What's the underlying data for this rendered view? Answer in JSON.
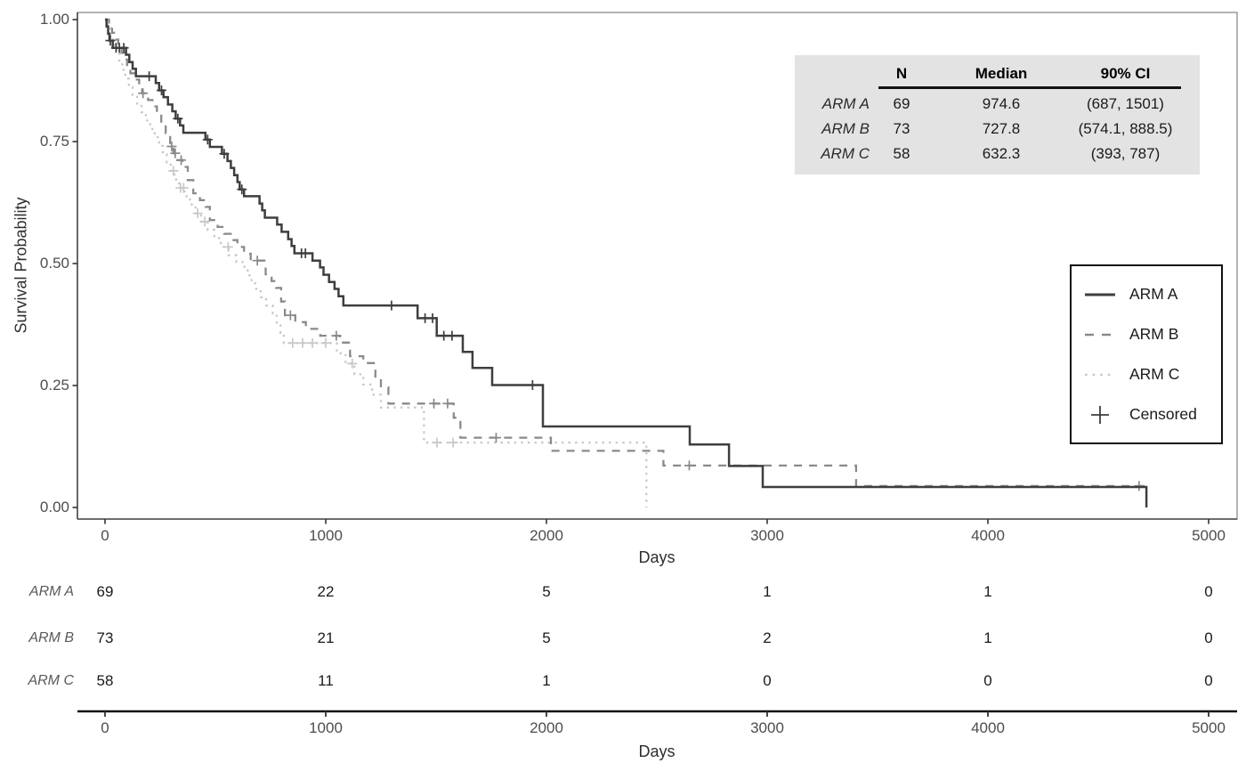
{
  "axes": {
    "x_title": "Days",
    "y_title": "Survival Probability"
  },
  "chart_data": {
    "type": "line",
    "subtype": "kaplan-meier-step",
    "title": "",
    "xlabel": "Days",
    "ylabel": "Survival Probability",
    "xlim": [
      0,
      5000
    ],
    "ylim": [
      0.0,
      1.0
    ],
    "grid": false,
    "legend_position": "right-inside-box",
    "x_ticks": [
      0,
      1000,
      2000,
      3000,
      4000,
      5000
    ],
    "y_ticks": [
      1.0,
      0.75,
      0.5,
      0.25,
      0.0
    ],
    "y_tick_labels": [
      "1.00",
      "0.75",
      "0.50",
      "0.25",
      "0.00"
    ],
    "series": [
      {
        "name": "ARM A",
        "color": "#3e3e3e",
        "line_style": "solid",
        "end_time": 4718,
        "steps": [
          [
            7,
            0.986
          ],
          [
            14,
            0.971
          ],
          [
            20,
            0.957
          ],
          [
            35,
            0.942
          ],
          [
            95,
            0.928
          ],
          [
            110,
            0.913
          ],
          [
            125,
            0.899
          ],
          [
            140,
            0.884
          ],
          [
            230,
            0.87
          ],
          [
            245,
            0.855
          ],
          [
            265,
            0.841
          ],
          [
            285,
            0.826
          ],
          [
            305,
            0.812
          ],
          [
            320,
            0.797
          ],
          [
            340,
            0.783
          ],
          [
            355,
            0.768
          ],
          [
            455,
            0.754
          ],
          [
            475,
            0.739
          ],
          [
            530,
            0.725
          ],
          [
            555,
            0.71
          ],
          [
            570,
            0.696
          ],
          [
            585,
            0.681
          ],
          [
            600,
            0.667
          ],
          [
            610,
            0.652
          ],
          [
            630,
            0.638
          ],
          [
            700,
            0.623
          ],
          [
            712,
            0.609
          ],
          [
            724,
            0.594
          ],
          [
            780,
            0.58
          ],
          [
            800,
            0.565
          ],
          [
            830,
            0.55
          ],
          [
            845,
            0.536
          ],
          [
            858,
            0.521
          ],
          [
            940,
            0.506
          ],
          [
            974,
            0.492
          ],
          [
            990,
            0.477
          ],
          [
            1015,
            0.462
          ],
          [
            1040,
            0.448
          ],
          [
            1058,
            0.433
          ],
          [
            1080,
            0.414
          ],
          [
            1416,
            0.388
          ],
          [
            1503,
            0.352
          ],
          [
            1621,
            0.319
          ],
          [
            1665,
            0.286
          ],
          [
            1754,
            0.251
          ],
          [
            1984,
            0.166
          ],
          [
            2649,
            0.129
          ],
          [
            2827,
            0.085
          ],
          [
            2980,
            0.042
          ],
          [
            4718,
            0.0
          ]
        ],
        "censors": [
          [
            24,
            0.957
          ],
          [
            50,
            0.942
          ],
          [
            65,
            0.942
          ],
          [
            85,
            0.942
          ],
          [
            200,
            0.884
          ],
          [
            256,
            0.855
          ],
          [
            330,
            0.797
          ],
          [
            465,
            0.754
          ],
          [
            540,
            0.725
          ],
          [
            620,
            0.652
          ],
          [
            890,
            0.521
          ],
          [
            908,
            0.521
          ],
          [
            1298,
            0.414
          ],
          [
            1450,
            0.388
          ],
          [
            1484,
            0.388
          ],
          [
            1535,
            0.352
          ],
          [
            1572,
            0.352
          ],
          [
            1937,
            0.251
          ]
        ]
      },
      {
        "name": "ARM B",
        "color": "#8a8a8a",
        "line_style": "dashed",
        "end_time": 4718,
        "steps": [
          [
            18,
            0.986
          ],
          [
            32,
            0.973
          ],
          [
            46,
            0.959
          ],
          [
            60,
            0.945
          ],
          [
            75,
            0.932
          ],
          [
            88,
            0.918
          ],
          [
            100,
            0.904
          ],
          [
            115,
            0.89
          ],
          [
            135,
            0.877
          ],
          [
            155,
            0.863
          ],
          [
            168,
            0.849
          ],
          [
            195,
            0.835
          ],
          [
            215,
            0.822
          ],
          [
            235,
            0.808
          ],
          [
            255,
            0.781
          ],
          [
            275,
            0.767
          ],
          [
            295,
            0.74
          ],
          [
            310,
            0.726
          ],
          [
            328,
            0.712
          ],
          [
            352,
            0.698
          ],
          [
            375,
            0.671
          ],
          [
            400,
            0.644
          ],
          [
            430,
            0.63
          ],
          [
            455,
            0.616
          ],
          [
            475,
            0.589
          ],
          [
            510,
            0.575
          ],
          [
            540,
            0.561
          ],
          [
            575,
            0.548
          ],
          [
            600,
            0.534
          ],
          [
            630,
            0.52
          ],
          [
            660,
            0.506
          ],
          [
            728,
            0.478
          ],
          [
            755,
            0.464
          ],
          [
            775,
            0.45
          ],
          [
            798,
            0.422
          ],
          [
            815,
            0.394
          ],
          [
            862,
            0.38
          ],
          [
            910,
            0.366
          ],
          [
            975,
            0.352
          ],
          [
            1065,
            0.338
          ],
          [
            1110,
            0.31
          ],
          [
            1170,
            0.296
          ],
          [
            1225,
            0.268
          ],
          [
            1250,
            0.246
          ],
          [
            1284,
            0.213
          ],
          [
            1580,
            0.184
          ],
          [
            1610,
            0.143
          ],
          [
            2020,
            0.116
          ],
          [
            2530,
            0.086
          ],
          [
            3403,
            0.044
          ]
        ],
        "censors": [
          [
            172,
            0.849
          ],
          [
            302,
            0.74
          ],
          [
            318,
            0.726
          ],
          [
            345,
            0.712
          ],
          [
            690,
            0.506
          ],
          [
            840,
            0.394
          ],
          [
            1048,
            0.352
          ],
          [
            1490,
            0.213
          ],
          [
            1552,
            0.213
          ],
          [
            1772,
            0.143
          ],
          [
            2647,
            0.086
          ],
          [
            4685,
            0.044
          ]
        ]
      },
      {
        "name": "ARM C",
        "color": "#c8c8c8",
        "line_style": "dotted",
        "end_time": 2453,
        "steps": [
          [
            12,
            0.983
          ],
          [
            25,
            0.966
          ],
          [
            38,
            0.948
          ],
          [
            52,
            0.931
          ],
          [
            65,
            0.914
          ],
          [
            78,
            0.897
          ],
          [
            92,
            0.879
          ],
          [
            108,
            0.862
          ],
          [
            125,
            0.845
          ],
          [
            145,
            0.828
          ],
          [
            165,
            0.81
          ],
          [
            185,
            0.793
          ],
          [
            205,
            0.776
          ],
          [
            225,
            0.759
          ],
          [
            245,
            0.741
          ],
          [
            262,
            0.724
          ],
          [
            280,
            0.707
          ],
          [
            298,
            0.69
          ],
          [
            315,
            0.672
          ],
          [
            335,
            0.655
          ],
          [
            360,
            0.638
          ],
          [
            385,
            0.621
          ],
          [
            410,
            0.603
          ],
          [
            435,
            0.586
          ],
          [
            465,
            0.569
          ],
          [
            495,
            0.552
          ],
          [
            525,
            0.534
          ],
          [
            560,
            0.517
          ],
          [
            595,
            0.503
          ],
          [
            632,
            0.486
          ],
          [
            655,
            0.466
          ],
          [
            680,
            0.448
          ],
          [
            705,
            0.431
          ],
          [
            730,
            0.414
          ],
          [
            760,
            0.397
          ],
          [
            778,
            0.379
          ],
          [
            795,
            0.358
          ],
          [
            810,
            0.337
          ],
          [
            1050,
            0.316
          ],
          [
            1090,
            0.295
          ],
          [
            1130,
            0.273
          ],
          [
            1170,
            0.252
          ],
          [
            1210,
            0.231
          ],
          [
            1250,
            0.205
          ],
          [
            1445,
            0.133
          ],
          [
            2453,
            0.0
          ]
        ],
        "censors": [
          [
            310,
            0.69
          ],
          [
            342,
            0.655
          ],
          [
            356,
            0.655
          ],
          [
            420,
            0.603
          ],
          [
            452,
            0.586
          ],
          [
            558,
            0.534
          ],
          [
            850,
            0.337
          ],
          [
            895,
            0.337
          ],
          [
            940,
            0.337
          ],
          [
            1000,
            0.337
          ],
          [
            1120,
            0.295
          ],
          [
            1504,
            0.133
          ],
          [
            1577,
            0.133
          ]
        ]
      }
    ]
  },
  "summary_table": {
    "headers": {
      "n": "N",
      "median": "Median",
      "ci": "90% CI"
    },
    "rows": [
      {
        "arm": "ARM A",
        "n": "69",
        "median": "974.6",
        "ci": "(687, 1501)"
      },
      {
        "arm": "ARM B",
        "n": "73",
        "median": "727.8",
        "ci": "(574.1, 888.5)"
      },
      {
        "arm": "ARM C",
        "n": "58",
        "median": "632.3",
        "ci": "(393, 787)"
      }
    ]
  },
  "legend": {
    "entries": [
      {
        "label": "ARM A",
        "style": "solid"
      },
      {
        "label": "ARM B",
        "style": "dashed"
      },
      {
        "label": "ARM C",
        "style": "dotted"
      },
      {
        "label": "Censored",
        "style": "plus"
      }
    ]
  },
  "risk_table": {
    "x_label": "Days",
    "time_points": [
      0,
      1000,
      2000,
      3000,
      4000,
      5000
    ],
    "rows": [
      {
        "label": "ARM A",
        "counts": [
          "69",
          "22",
          "5",
          "1",
          "1",
          "0"
        ]
      },
      {
        "label": "ARM B",
        "counts": [
          "73",
          "21",
          "5",
          "2",
          "1",
          "0"
        ]
      },
      {
        "label": "ARM C",
        "counts": [
          "58",
          "11",
          "1",
          "0",
          "0",
          "0"
        ]
      }
    ]
  }
}
